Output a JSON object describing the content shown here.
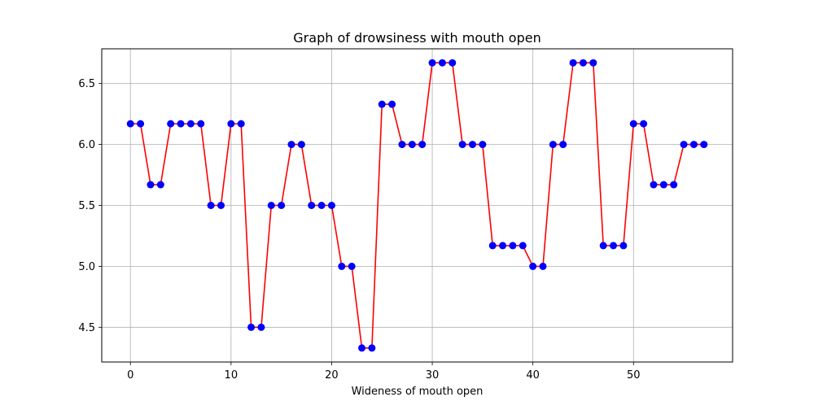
{
  "chart_data": {
    "type": "line",
    "title": "Graph of drowsiness with mouth open",
    "xlabel": "Wideness of mouth open",
    "ylabel": "",
    "xlim": [
      -2.85,
      59.85
    ],
    "ylim": [
      4.215,
      6.785
    ],
    "x_ticks": [
      0,
      10,
      20,
      30,
      40,
      50
    ],
    "y_ticks": [
      4.5,
      5.0,
      5.5,
      6.0,
      6.5
    ],
    "x_tick_labels": [
      "0",
      "10",
      "20",
      "30",
      "40",
      "50"
    ],
    "y_tick_labels": [
      "4.5",
      "5.0",
      "5.5",
      "6.0",
      "6.5"
    ],
    "grid": true,
    "series": [
      {
        "line_color": "#ff0000",
        "marker_color": "#0000ff",
        "marker": "circle",
        "x": [
          0,
          1,
          2,
          3,
          4,
          5,
          6,
          7,
          8,
          9,
          10,
          11,
          12,
          13,
          14,
          15,
          16,
          17,
          18,
          19,
          20,
          21,
          22,
          23,
          24,
          25,
          26,
          27,
          28,
          29,
          30,
          31,
          32,
          33,
          34,
          35,
          36,
          37,
          38,
          39,
          40,
          41,
          42,
          43,
          44,
          45,
          46,
          47,
          48,
          49,
          50,
          51,
          52,
          53,
          54,
          55,
          56,
          57
        ],
        "y": [
          6.17,
          6.17,
          5.67,
          5.67,
          6.17,
          6.17,
          6.17,
          6.17,
          5.5,
          5.5,
          6.17,
          6.17,
          4.5,
          4.5,
          5.5,
          5.5,
          6.0,
          6.0,
          5.5,
          5.5,
          5.5,
          5.0,
          5.0,
          4.33,
          4.33,
          6.33,
          6.33,
          6.0,
          6.0,
          6.0,
          6.67,
          6.67,
          6.67,
          6.0,
          6.0,
          6.0,
          5.17,
          5.17,
          5.17,
          5.17,
          5.0,
          5.0,
          6.0,
          6.0,
          6.67,
          6.67,
          6.67,
          5.17,
          5.17,
          5.17,
          6.17,
          6.17,
          5.67,
          5.67,
          5.67,
          6.0,
          6.0,
          6.0
        ]
      }
    ]
  }
}
